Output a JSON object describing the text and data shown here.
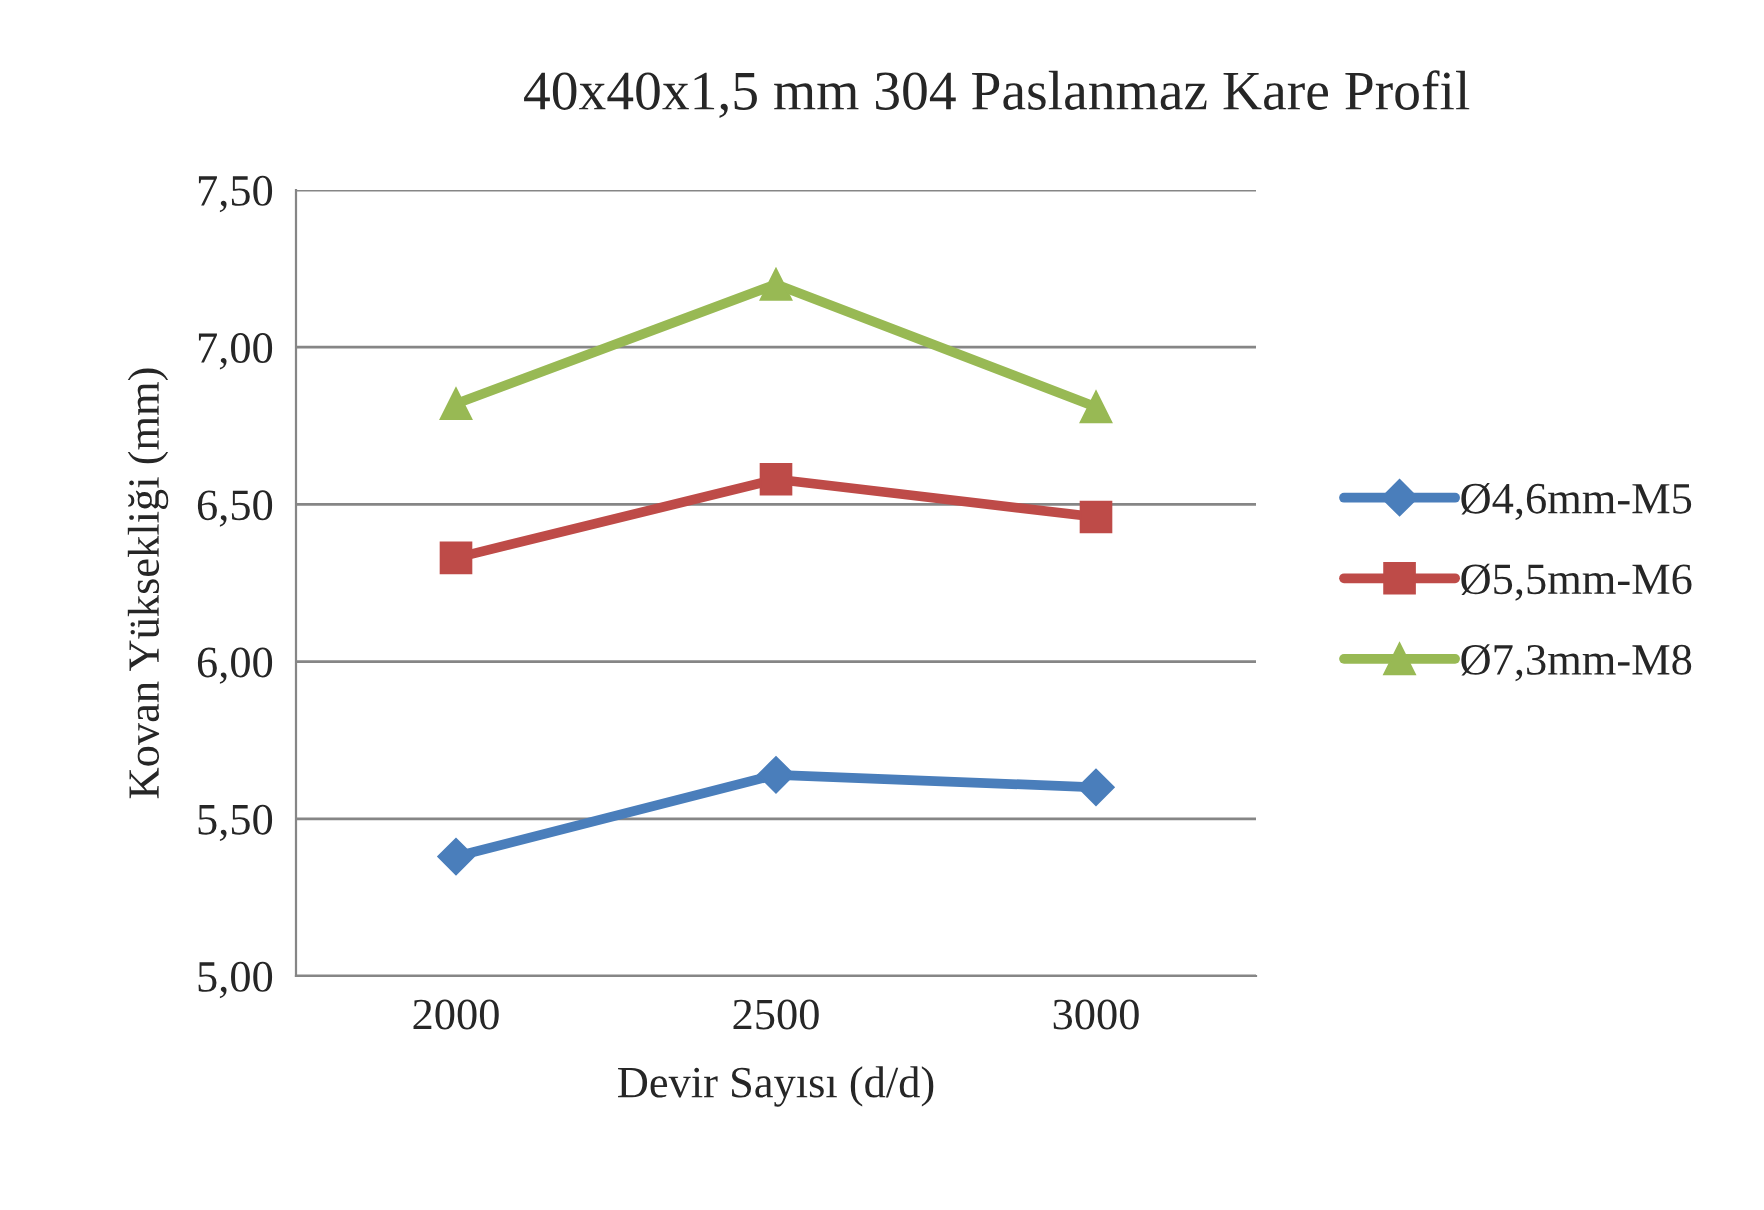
{
  "chart_data": {
    "type": "line",
    "title": "40x40x1,5 mm 304 Paslanmaz Kare Profil",
    "xlabel": "Devir Sayısı (d/d)",
    "ylabel": "Kovan Yüksekliği (mm)",
    "categories": [
      "2000",
      "2500",
      "3000"
    ],
    "series": [
      {
        "name": "Ø4,6mm-M5",
        "color": "#4a7ebb",
        "marker": "diamond",
        "values": [
          5.38,
          5.64,
          5.6
        ]
      },
      {
        "name": "Ø5,5mm-M6",
        "color": "#be4b48",
        "marker": "square",
        "values": [
          6.33,
          6.58,
          6.46
        ]
      },
      {
        "name": "Ø7,3mm-M8",
        "color": "#98b954",
        "marker": "triangle",
        "values": [
          6.82,
          7.2,
          6.81
        ]
      }
    ],
    "ylim": [
      5.0,
      7.5
    ],
    "yticks": [
      {
        "value": 5.0,
        "label": "5,00"
      },
      {
        "value": 5.5,
        "label": "5,50"
      },
      {
        "value": 6.0,
        "label": "6,00"
      },
      {
        "value": 6.5,
        "label": "6,50"
      },
      {
        "value": 7.0,
        "label": "7,00"
      },
      {
        "value": 7.5,
        "label": "7,50"
      }
    ],
    "grid": "y",
    "legend": "right",
    "line_style": "solid"
  }
}
